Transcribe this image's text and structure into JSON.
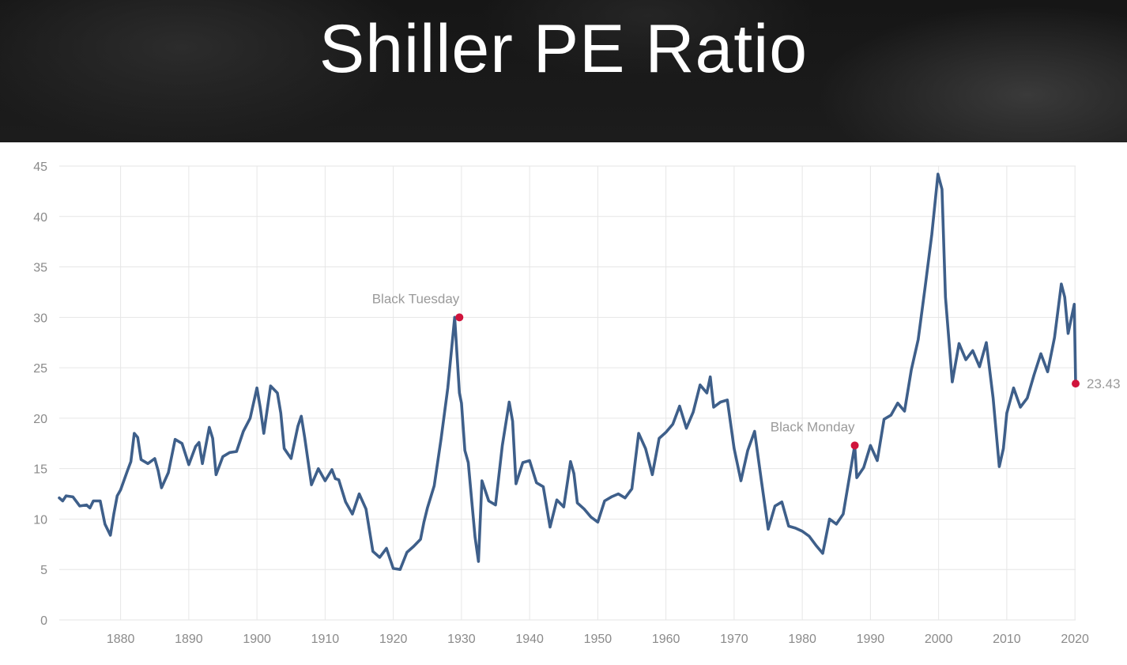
{
  "header": {
    "title": "Shiller PE Ratio"
  },
  "colors": {
    "line": "#3e5f8a",
    "marker": "#d0143c",
    "grid": "#e6e6e6",
    "axis_text": "#8a8a8a",
    "annotation_text": "#9a9a9a"
  },
  "chart_data": {
    "type": "line",
    "title": "Shiller PE Ratio",
    "xlabel": "",
    "ylabel": "",
    "xlim": [
      1871,
      2020.1
    ],
    "ylim": [
      0,
      45
    ],
    "grid": true,
    "xticks": [
      1880,
      1890,
      1900,
      1910,
      1920,
      1930,
      1940,
      1950,
      1960,
      1970,
      1980,
      1990,
      2000,
      2010,
      2020
    ],
    "yticks": [
      0,
      5,
      10,
      15,
      20,
      25,
      30,
      35,
      40,
      45
    ],
    "series": [
      {
        "name": "",
        "x": [
          1871,
          1871.5,
          1872,
          1873,
          1874,
          1875,
          1875.5,
          1876,
          1877,
          1877.7,
          1878.5,
          1879,
          1879.5,
          1880,
          1881,
          1881.5,
          1882,
          1882.5,
          1883,
          1884,
          1885,
          1885.5,
          1886,
          1887,
          1888,
          1889,
          1890,
          1891,
          1891.5,
          1892,
          1893,
          1893.5,
          1894,
          1895,
          1896,
          1897,
          1898,
          1899,
          1900,
          1900.5,
          1901,
          1902,
          1903,
          1903.5,
          1904,
          1905,
          1906,
          1906.5,
          1907,
          1908,
          1909,
          1910,
          1911,
          1911.5,
          1912,
          1913,
          1914,
          1915,
          1916,
          1917,
          1918,
          1919,
          1920,
          1921,
          1922,
          1923,
          1924,
          1924.5,
          1925,
          1926,
          1927,
          1928,
          1929,
          1929.7,
          1930,
          1930.5,
          1931,
          1932,
          1932.5,
          1933,
          1934,
          1935,
          1936,
          1937,
          1937.5,
          1938,
          1939,
          1940,
          1941,
          1942,
          1943,
          1944,
          1945,
          1946,
          1946.5,
          1947,
          1948,
          1949,
          1950,
          1951,
          1952,
          1953,
          1954,
          1955,
          1956,
          1957,
          1958,
          1959,
          1960,
          1961,
          1962,
          1963,
          1964,
          1965,
          1966,
          1966.5,
          1967,
          1968,
          1969,
          1970,
          1971,
          1972,
          1973,
          1974,
          1975,
          1976,
          1977,
          1978,
          1979,
          1980,
          1981,
          1982,
          1983,
          1984,
          1985,
          1986,
          1987,
          1987.7,
          1988,
          1989,
          1990,
          1991,
          1992,
          1993,
          1994,
          1995,
          1996,
          1997,
          1998,
          1999,
          1999.9,
          2000.5,
          2001,
          2002,
          2003,
          2004,
          2005,
          2006,
          2007,
          2008,
          2008.9,
          2009.5,
          2010,
          2011,
          2012,
          2013,
          2014,
          2015,
          2016,
          2017,
          2018,
          2018.5,
          2019,
          2019.9,
          2020.1
        ],
        "values": [
          12.1,
          11.8,
          12.3,
          12.2,
          11.3,
          11.4,
          11.1,
          11.8,
          11.8,
          9.5,
          8.4,
          10.5,
          12.3,
          12.9,
          14.8,
          15.7,
          18.5,
          18.1,
          15.9,
          15.5,
          16.0,
          14.8,
          13.1,
          14.6,
          17.9,
          17.5,
          15.4,
          17.2,
          17.6,
          15.5,
          19.1,
          18.0,
          14.4,
          16.2,
          16.6,
          16.7,
          18.7,
          20.0,
          23.0,
          21.0,
          18.5,
          23.2,
          22.5,
          20.5,
          17.0,
          16.0,
          19.2,
          20.2,
          18.1,
          13.4,
          15.0,
          13.8,
          14.9,
          14.0,
          13.9,
          11.7,
          10.5,
          12.5,
          11.0,
          6.8,
          6.2,
          7.1,
          5.1,
          5.0,
          6.7,
          7.3,
          8.0,
          9.7,
          11.1,
          13.3,
          17.9,
          23.0,
          30.0,
          22.5,
          21.5,
          16.8,
          15.6,
          8.2,
          5.8,
          13.8,
          11.8,
          11.4,
          17.3,
          21.6,
          19.7,
          13.5,
          15.6,
          15.8,
          13.6,
          13.2,
          9.2,
          11.9,
          11.2,
          15.7,
          14.5,
          11.6,
          11.0,
          10.2,
          9.7,
          11.8,
          12.2,
          12.5,
          12.1,
          13.0,
          18.5,
          17.0,
          14.4,
          18.0,
          18.6,
          19.4,
          21.2,
          19.0,
          20.6,
          23.3,
          22.5,
          24.1,
          21.1,
          21.6,
          21.8,
          17.0,
          13.8,
          16.8,
          18.7,
          13.8,
          9.0,
          11.3,
          11.7,
          9.3,
          9.1,
          8.8,
          8.3,
          7.4,
          6.6,
          10.0,
          9.5,
          10.5,
          14.5,
          17.3,
          14.1,
          15.1,
          17.3,
          15.8,
          19.9,
          20.3,
          21.5,
          20.7,
          24.8,
          27.8,
          32.9,
          38.2,
          44.2,
          42.7,
          32.0,
          23.6,
          27.4,
          25.8,
          26.7,
          25.1,
          27.5,
          22.0,
          15.2,
          17.0,
          20.5,
          23.0,
          21.1,
          22.0,
          24.3,
          26.4,
          24.6,
          28.0,
          33.3,
          32.0,
          28.4,
          31.3,
          23.43
        ]
      }
    ],
    "annotations": [
      {
        "label": "Black Tuesday",
        "x": 1929.7,
        "y": 30.0
      },
      {
        "label": "Black Monday",
        "x": 1987.7,
        "y": 17.3
      },
      {
        "label": "23.43",
        "x": 2020.1,
        "y": 23.43
      }
    ]
  }
}
